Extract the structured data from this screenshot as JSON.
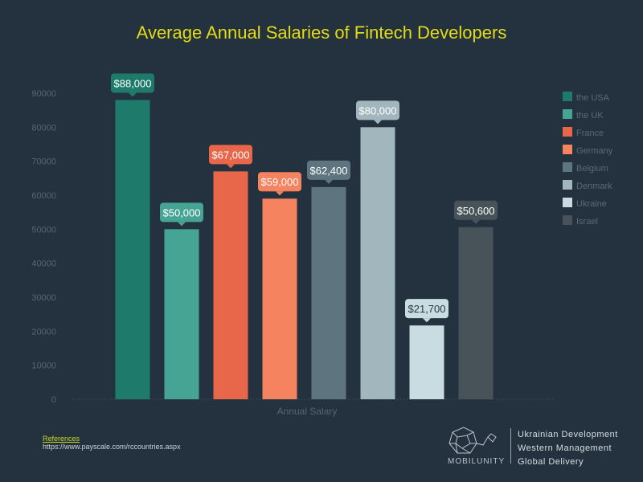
{
  "chart_data": {
    "type": "bar",
    "title": "Average Annual Salaries of Fintech Developers",
    "xlabel": "Annual Salary",
    "ylabel": "",
    "ylim": [
      0,
      90000
    ],
    "yticks": [
      0,
      10000,
      20000,
      30000,
      40000,
      50000,
      60000,
      70000,
      80000,
      90000
    ],
    "grid": false,
    "legend_position": "right",
    "series": [
      {
        "name": "the USA",
        "value": 88000,
        "label": "$88,000",
        "color": "#1e7b6c"
      },
      {
        "name": "the UK",
        "value": 50000,
        "label": "$50,000",
        "color": "#45a494"
      },
      {
        "name": "France",
        "value": 67000,
        "label": "$67,000",
        "color": "#e8664a"
      },
      {
        "name": "Germany",
        "value": 59000,
        "label": "$59,000",
        "color": "#f5835f"
      },
      {
        "name": "Belgium",
        "value": 62400,
        "label": "$62,400",
        "color": "#5e757f"
      },
      {
        "name": "Denmark",
        "value": 80000,
        "label": "$80,000",
        "color": "#a2b6be"
      },
      {
        "name": "Ukraine",
        "value": 21700,
        "label": "$21,700",
        "color": "#c8dce2"
      },
      {
        "name": "Israel",
        "value": 50600,
        "label": "$50,600",
        "color": "#485359"
      }
    ]
  },
  "references": {
    "heading": "References",
    "url": "https://www.payscale.com/rccountries.aspx"
  },
  "logo": {
    "name": "MOBILUNITY",
    "taglines": [
      "Ukrainian Development",
      "Western Management",
      "Global Delivery"
    ]
  }
}
